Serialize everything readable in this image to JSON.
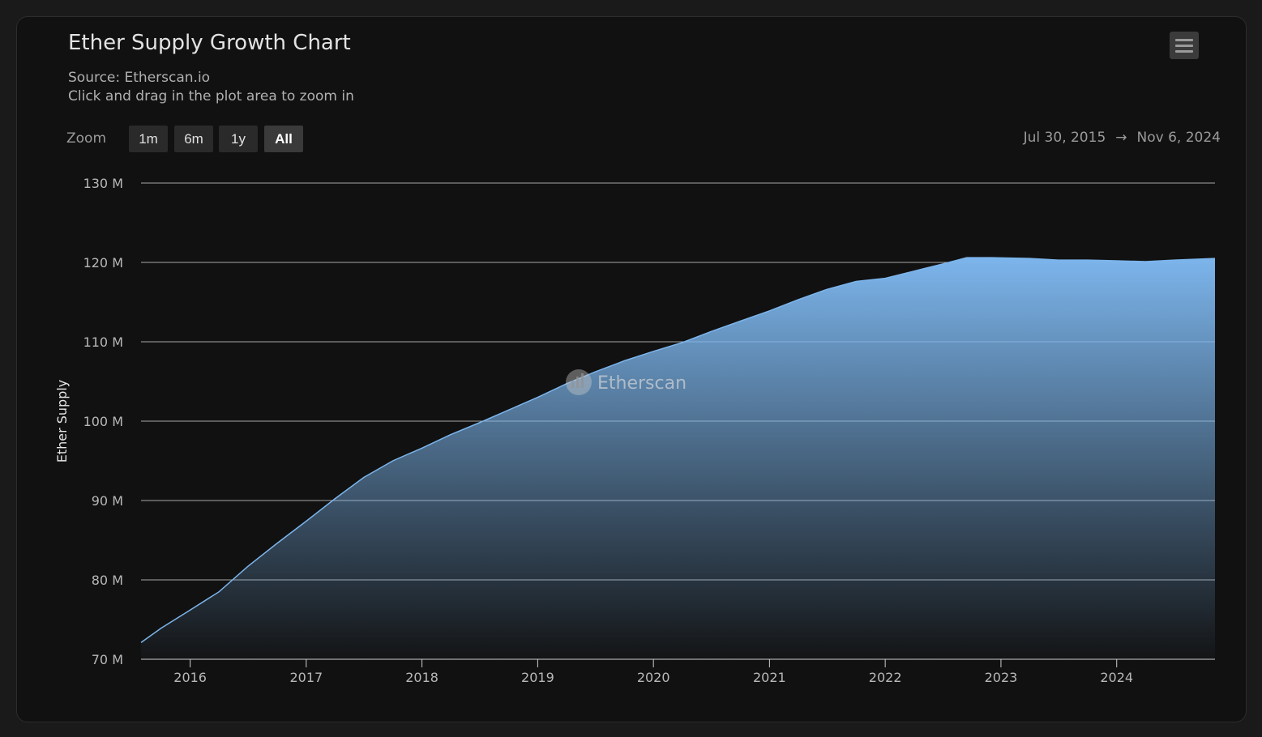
{
  "header": {
    "title": "Ether Supply Growth Chart",
    "source": "Source: Etherscan.io",
    "hint": "Click and drag in the plot area to zoom in",
    "menu_icon": "hamburger-menu-icon"
  },
  "zoom": {
    "label": "Zoom",
    "buttons": [
      "1m",
      "6m",
      "1y",
      "All"
    ],
    "selected": "All"
  },
  "range": {
    "from": "Jul 30, 2015",
    "arrow": "→",
    "to": "Nov 6, 2024"
  },
  "watermark": {
    "text": "Etherscan",
    "icon": "etherscan-logo-icon"
  },
  "colors": {
    "line": "#7cb5ec",
    "fill_top": "#7cb5ec",
    "grid": "#d8d8d8",
    "background": "#111111"
  },
  "chart_data": {
    "type": "area",
    "title": "Ether Supply Growth Chart",
    "ylabel": "Ether Supply",
    "xlabel": "",
    "ylim": [
      70,
      130
    ],
    "yunit": "M",
    "xlim": [
      "2015-07-30",
      "2024-11-06"
    ],
    "y_ticks": [
      70,
      80,
      90,
      100,
      110,
      120,
      130
    ],
    "y_tick_labels": [
      "70 M",
      "80 M",
      "90 M",
      "100 M",
      "110 M",
      "120 M",
      "130 M"
    ],
    "x_ticks": [
      "2016-01-01",
      "2017-01-01",
      "2018-01-01",
      "2019-01-01",
      "2020-01-01",
      "2021-01-01",
      "2022-01-01",
      "2023-01-01",
      "2024-01-01"
    ],
    "x_tick_labels": [
      "2016",
      "2017",
      "2018",
      "2019",
      "2020",
      "2021",
      "2022",
      "2023",
      "2024"
    ],
    "grid": true,
    "legend": false,
    "series": [
      {
        "x": [
          "2015-07-30",
          "2015-10-01",
          "2016-01-01",
          "2016-04-01",
          "2016-07-01",
          "2016-10-01",
          "2017-01-01",
          "2017-04-01",
          "2017-07-01",
          "2017-10-01",
          "2018-01-01",
          "2018-04-01",
          "2018-07-01",
          "2018-10-01",
          "2019-01-01",
          "2019-04-01",
          "2019-07-01",
          "2019-10-01",
          "2020-01-01",
          "2020-04-01",
          "2020-07-01",
          "2020-10-01",
          "2021-01-01",
          "2021-04-01",
          "2021-07-01",
          "2021-10-01",
          "2022-01-01",
          "2022-04-01",
          "2022-07-01",
          "2022-09-15",
          "2022-12-01",
          "2023-04-01",
          "2023-07-01",
          "2023-10-01",
          "2024-01-01",
          "2024-04-01",
          "2024-07-01",
          "2024-11-06"
        ],
        "values": [
          72.1,
          73.9,
          76.2,
          78.5,
          81.7,
          84.6,
          87.4,
          90.2,
          92.9,
          95.0,
          96.6,
          98.3,
          99.8,
          101.4,
          103.0,
          104.7,
          106.2,
          107.6,
          108.8,
          109.9,
          111.3,
          112.6,
          113.9,
          115.3,
          116.6,
          117.6,
          118.0,
          118.9,
          119.8,
          120.6,
          120.6,
          120.5,
          120.3,
          120.3,
          120.2,
          120.1,
          120.3,
          120.5
        ]
      }
    ]
  }
}
